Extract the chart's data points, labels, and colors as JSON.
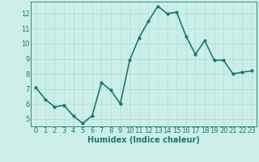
{
  "x": [
    0,
    1,
    2,
    3,
    4,
    5,
    6,
    7,
    8,
    9,
    10,
    11,
    12,
    13,
    14,
    15,
    16,
    17,
    18,
    19,
    20,
    21,
    22,
    23
  ],
  "y": [
    7.1,
    6.3,
    5.8,
    5.9,
    5.2,
    4.7,
    5.2,
    7.4,
    6.9,
    6.0,
    8.9,
    10.4,
    11.5,
    12.5,
    12.0,
    12.1,
    10.5,
    9.3,
    10.2,
    8.9,
    8.9,
    8.0,
    8.1,
    8.2
  ],
  "line_color": "#1a7a6e",
  "marker": "o",
  "marker_size": 2.0,
  "bg_color": "#cceee8",
  "grid_color": "#aaddda",
  "xlabel": "Humidex (Indice chaleur)",
  "ylim": [
    4.5,
    12.8
  ],
  "xlim": [
    -0.5,
    23.5
  ],
  "yticks": [
    5,
    6,
    7,
    8,
    9,
    10,
    11,
    12
  ],
  "xticks": [
    0,
    1,
    2,
    3,
    4,
    5,
    6,
    7,
    8,
    9,
    10,
    11,
    12,
    13,
    14,
    15,
    16,
    17,
    18,
    19,
    20,
    21,
    22,
    23
  ],
  "xlabel_fontsize": 7,
  "tick_fontsize": 6,
  "line_width": 1.2
}
